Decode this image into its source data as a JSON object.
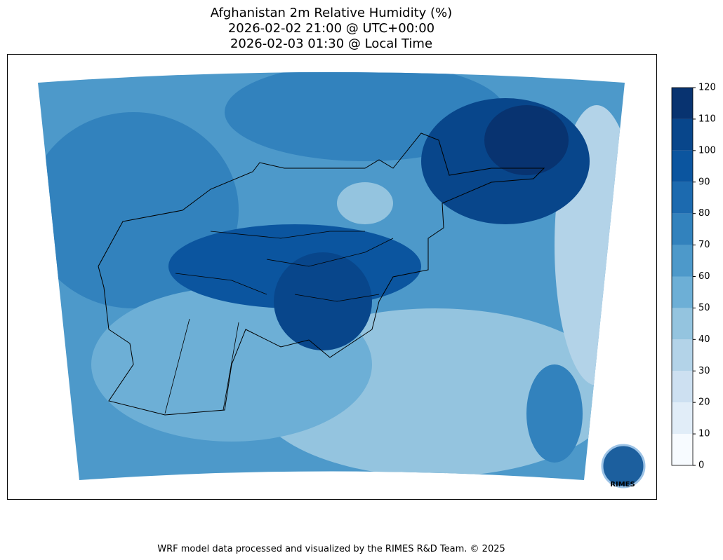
{
  "header": {
    "title_lines": [
      "Afghanistan 2m Relative Humidity (%)",
      "2026-02-02 21:00 @ UTC+00:00",
      "2026-02-03 01:30 @ Local Time"
    ]
  },
  "colorbar": {
    "ticks": [
      0,
      10,
      20,
      30,
      40,
      50,
      60,
      70,
      80,
      90,
      100,
      110,
      120
    ],
    "colors": [
      "#f7fbff",
      "#e1edf8",
      "#cde0f1",
      "#b3d3e8",
      "#94c4df",
      "#6dafd6",
      "#4d99ca",
      "#3282bd",
      "#1c6aaf",
      "#0b559f",
      "#08468b",
      "#083370"
    ]
  },
  "logo": {
    "text": "RIMES"
  },
  "footer": {
    "text": "WRF model data processed and visualized by the RIMES R&D Team. © 2025"
  }
}
